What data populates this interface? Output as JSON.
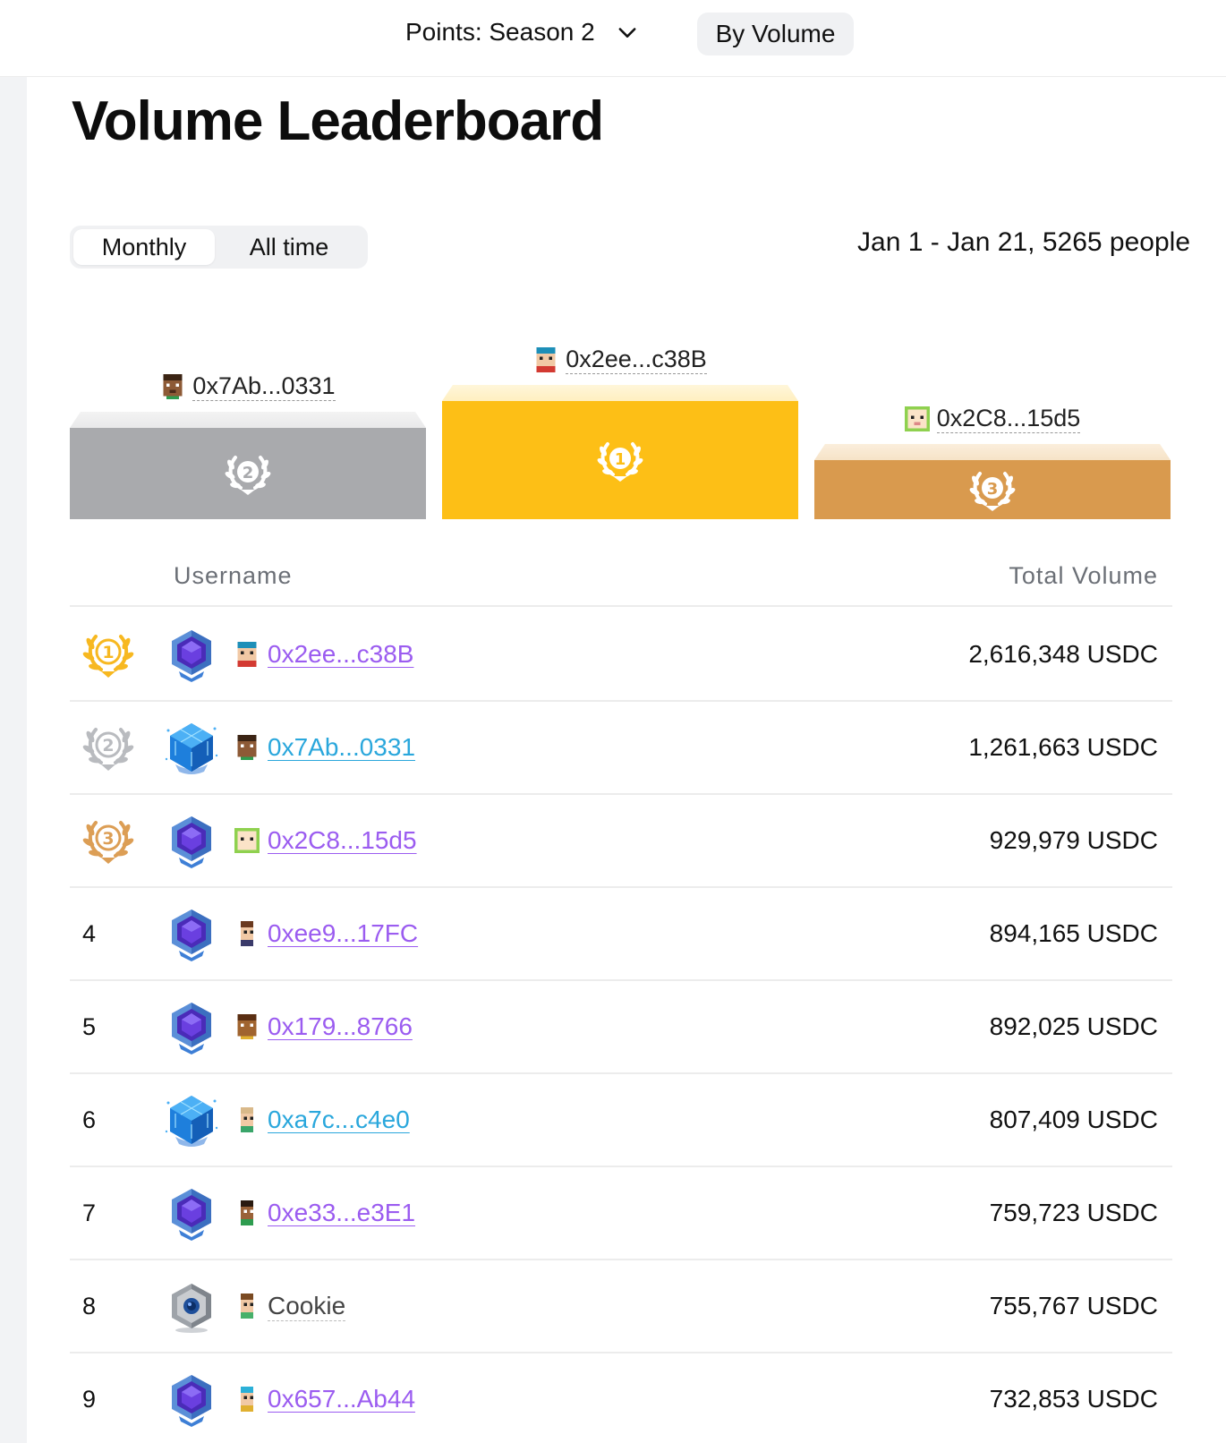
{
  "header": {
    "season_label": "Points: Season 2",
    "mode_label": "By Volume"
  },
  "page": {
    "title": "Volume Leaderboard",
    "tabs": [
      {
        "label": "Monthly",
        "active": true
      },
      {
        "label": "All time",
        "active": false
      }
    ],
    "date_range": "Jan 1 - Jan 21, 5265 people"
  },
  "podium": {
    "first": {
      "name": "0x2ee...c38B",
      "place": "1",
      "color": "#fdbf16"
    },
    "second": {
      "name": "0x7Ab...0331",
      "place": "2",
      "color": "#a9aaad"
    },
    "third": {
      "name": "0x2C8...15d5",
      "place": "3",
      "color": "#d99a4e"
    }
  },
  "table": {
    "col_username": "Username",
    "col_volume": "Total Volume",
    "rows": [
      {
        "rank": "1",
        "name": "0x2ee...c38B",
        "volume": "2,616,348 USDC",
        "style": "purple",
        "badge": "purple-hex",
        "medal": "gold"
      },
      {
        "rank": "2",
        "name": "0x7Ab...0331",
        "volume": "1,261,663 USDC",
        "style": "cyan",
        "badge": "blue-cube",
        "medal": "silver"
      },
      {
        "rank": "3",
        "name": "0x2C8...15d5",
        "volume": "929,979 USDC",
        "style": "purple",
        "badge": "purple-hex",
        "medal": "bronze"
      },
      {
        "rank": "4",
        "name": "0xee9...17FC",
        "volume": "894,165 USDC",
        "style": "purple",
        "badge": "purple-hex"
      },
      {
        "rank": "5",
        "name": "0x179...8766",
        "volume": "892,025 USDC",
        "style": "purple",
        "badge": "purple-hex"
      },
      {
        "rank": "6",
        "name": "0xa7c...c4e0",
        "volume": "807,409 USDC",
        "style": "cyan",
        "badge": "blue-cube"
      },
      {
        "rank": "7",
        "name": "0xe33...e3E1",
        "volume": "759,723 USDC",
        "style": "purple",
        "badge": "purple-hex"
      },
      {
        "rank": "8",
        "name": "Cookie",
        "volume": "755,767 USDC",
        "style": "plain",
        "badge": "silver-hex"
      },
      {
        "rank": "9",
        "name": "0x657...Ab44",
        "volume": "732,853 USDC",
        "style": "purple",
        "badge": "purple-hex"
      }
    ]
  }
}
